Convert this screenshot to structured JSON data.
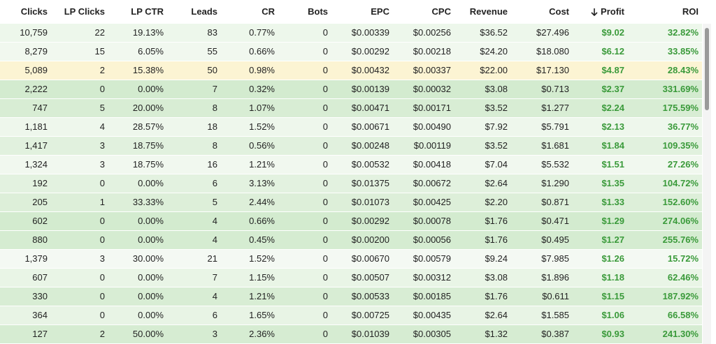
{
  "table": {
    "columns": [
      "Clicks",
      "LP Clicks",
      "LP CTR",
      "Leads",
      "CR",
      "Bots",
      "EPC",
      "CPC",
      "Revenue",
      "Cost",
      "Profit",
      "ROI"
    ],
    "rows": [
      [
        "10,759",
        "22",
        "19.13%",
        "83",
        "0.77%",
        "0",
        "$0.00339",
        "$0.00256",
        "$36.52",
        "$27.496",
        "$9.02",
        "32.82%"
      ],
      [
        "8,279",
        "15",
        "6.05%",
        "55",
        "0.66%",
        "0",
        "$0.00292",
        "$0.00218",
        "$24.20",
        "$18.080",
        "$6.12",
        "33.85%"
      ],
      [
        "5,089",
        "2",
        "15.38%",
        "50",
        "0.98%",
        "0",
        "$0.00432",
        "$0.00337",
        "$22.00",
        "$17.130",
        "$4.87",
        "28.43%"
      ],
      [
        "2,222",
        "0",
        "0.00%",
        "7",
        "0.32%",
        "0",
        "$0.00139",
        "$0.00032",
        "$3.08",
        "$0.713",
        "$2.37",
        "331.69%"
      ],
      [
        "747",
        "5",
        "20.00%",
        "8",
        "1.07%",
        "0",
        "$0.00471",
        "$0.00171",
        "$3.52",
        "$1.277",
        "$2.24",
        "175.59%"
      ],
      [
        "1,181",
        "4",
        "28.57%",
        "18",
        "1.52%",
        "0",
        "$0.00671",
        "$0.00490",
        "$7.92",
        "$5.791",
        "$2.13",
        "36.77%"
      ],
      [
        "1,417",
        "3",
        "18.75%",
        "8",
        "0.56%",
        "0",
        "$0.00248",
        "$0.00119",
        "$3.52",
        "$1.681",
        "$1.84",
        "109.35%"
      ],
      [
        "1,324",
        "3",
        "18.75%",
        "16",
        "1.21%",
        "0",
        "$0.00532",
        "$0.00418",
        "$7.04",
        "$5.532",
        "$1.51",
        "27.26%"
      ],
      [
        "192",
        "0",
        "0.00%",
        "6",
        "3.13%",
        "0",
        "$0.01375",
        "$0.00672",
        "$2.64",
        "$1.290",
        "$1.35",
        "104.72%"
      ],
      [
        "205",
        "1",
        "33.33%",
        "5",
        "2.44%",
        "0",
        "$0.01073",
        "$0.00425",
        "$2.20",
        "$0.871",
        "$1.33",
        "152.60%"
      ],
      [
        "602",
        "0",
        "0.00%",
        "4",
        "0.66%",
        "0",
        "$0.00292",
        "$0.00078",
        "$1.76",
        "$0.471",
        "$1.29",
        "274.06%"
      ],
      [
        "880",
        "0",
        "0.00%",
        "4",
        "0.45%",
        "0",
        "$0.00200",
        "$0.00056",
        "$1.76",
        "$0.495",
        "$1.27",
        "255.76%"
      ],
      [
        "1,379",
        "3",
        "30.00%",
        "21",
        "1.52%",
        "0",
        "$0.00670",
        "$0.00579",
        "$9.24",
        "$7.985",
        "$1.26",
        "15.72%"
      ],
      [
        "607",
        "0",
        "0.00%",
        "7",
        "1.15%",
        "0",
        "$0.00507",
        "$0.00312",
        "$3.08",
        "$1.896",
        "$1.18",
        "62.46%"
      ],
      [
        "330",
        "0",
        "0.00%",
        "4",
        "1.21%",
        "0",
        "$0.00533",
        "$0.00185",
        "$1.76",
        "$0.611",
        "$1.15",
        "187.92%"
      ],
      [
        "364",
        "0",
        "0.00%",
        "6",
        "1.65%",
        "0",
        "$0.00725",
        "$0.00435",
        "$2.64",
        "$1.585",
        "$1.06",
        "66.58%"
      ],
      [
        "127",
        "2",
        "50.00%",
        "3",
        "2.36%",
        "0",
        "$0.01039",
        "$0.00305",
        "$1.32",
        "$0.387",
        "$0.93",
        "241.30%"
      ]
    ]
  }
}
